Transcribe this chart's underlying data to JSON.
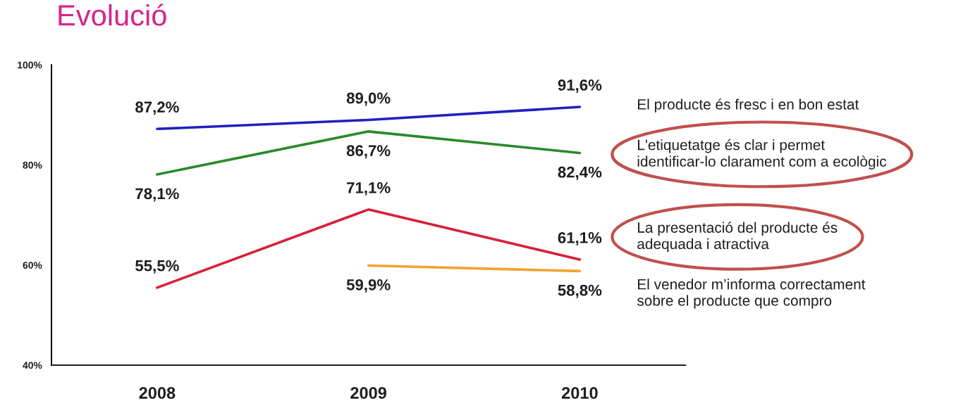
{
  "chart_data": {
    "type": "line",
    "title": "Evolució",
    "categories": [
      "2008",
      "2009",
      "2010"
    ],
    "ylim": [
      40,
      100
    ],
    "yticks": [
      {
        "value": 40,
        "label": "40%"
      },
      {
        "value": 60,
        "label": "60%"
      },
      {
        "value": 80,
        "label": "80%"
      },
      {
        "value": 100,
        "label": "100%"
      }
    ],
    "line_style": "solid",
    "series": [
      {
        "name": "El producte és fresc i en bon estat",
        "color": "#2020c0",
        "values": [
          87.2,
          89.0,
          91.6
        ],
        "value_labels": [
          "87,2%",
          "89,0%",
          "91,6%"
        ]
      },
      {
        "name": "L'etiquetatge és clar i permet identificar-lo clarament com a ecològic",
        "color": "#2a8a2a",
        "values": [
          78.1,
          86.7,
          82.4
        ],
        "value_labels": [
          "78,1%",
          "86,7%",
          "82,4%"
        ]
      },
      {
        "name": "La presentació del producte és adequada i atractiva",
        "color": "#d8203a",
        "values": [
          55.5,
          71.1,
          61.1
        ],
        "value_labels": [
          "55,5%",
          "71,1%",
          "61,1%"
        ]
      },
      {
        "name": "El venedor m’informa correctament sobre el producte que compro",
        "color": "#f2a330",
        "values": [
          null,
          59.9,
          58.8
        ],
        "value_labels": [
          null,
          "59,9%",
          "58,8%"
        ]
      }
    ]
  }
}
